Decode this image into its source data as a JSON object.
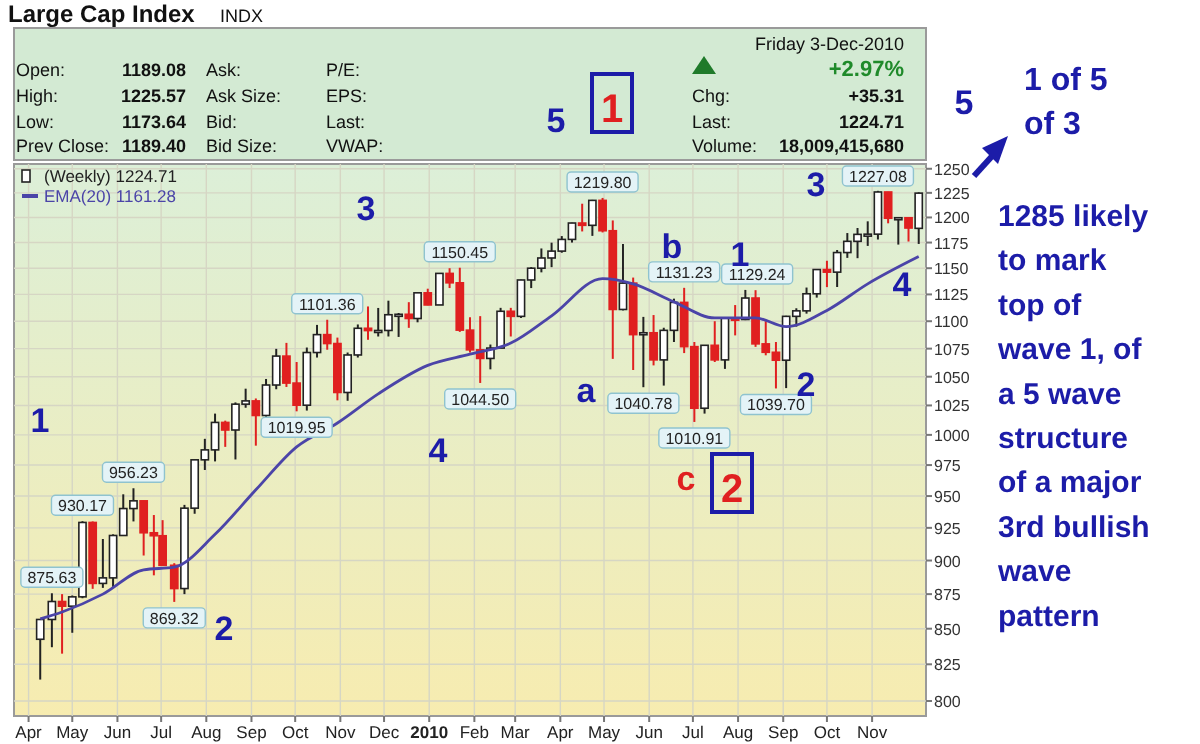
{
  "chart_data": {
    "type": "candlestick",
    "title": "Large Cap Index",
    "subtitle": "INDX",
    "xlim": [
      "2009-03-22",
      "2010-12-08"
    ],
    "xticks": [
      {
        "value": "2009-04-01",
        "label": "Apr"
      },
      {
        "value": "2009-05-01",
        "label": "May"
      },
      {
        "value": "2009-06-01",
        "label": "Jun"
      },
      {
        "value": "2009-07-01",
        "label": "Jul"
      },
      {
        "value": "2009-08-01",
        "label": "Aug"
      },
      {
        "value": "2009-09-01",
        "label": "Sep"
      },
      {
        "value": "2009-10-01",
        "label": "Oct"
      },
      {
        "value": "2009-11-01",
        "label": "Nov"
      },
      {
        "value": "2009-12-01",
        "label": "Dec"
      },
      {
        "value": "2010-01-01",
        "label": "2010"
      },
      {
        "value": "2010-02-01",
        "label": "Feb"
      },
      {
        "value": "2010-03-01",
        "label": "Mar"
      },
      {
        "value": "2010-04-01",
        "label": "Apr"
      },
      {
        "value": "2010-05-01",
        "label": "May"
      },
      {
        "value": "2010-06-01",
        "label": "Jun"
      },
      {
        "value": "2010-07-01",
        "label": "Jul"
      },
      {
        "value": "2010-08-01",
        "label": "Aug"
      },
      {
        "value": "2010-09-01",
        "label": "Sep"
      },
      {
        "value": "2010-10-01",
        "label": "Oct"
      },
      {
        "value": "2010-11-01",
        "label": "Nov"
      }
    ],
    "ylim": [
      790,
      1255
    ],
    "yticks": [
      800,
      825,
      850,
      875,
      900,
      925,
      950,
      975,
      1000,
      1025,
      1050,
      1075,
      1100,
      1125,
      1150,
      1175,
      1200,
      1225,
      1250
    ],
    "log": true,
    "grid": true,
    "legend": "top left",
    "series": [
      {
        "name": "(Weekly) 1224.71",
        "type": "candlestick",
        "x": [
          "2009-04-09",
          "2009-04-17",
          "2009-04-24",
          "2009-05-01",
          "2009-05-08",
          "2009-05-15",
          "2009-05-22",
          "2009-05-29",
          "2009-06-05",
          "2009-06-12",
          "2009-06-19",
          "2009-06-26",
          "2009-07-02",
          "2009-07-10",
          "2009-07-17",
          "2009-07-24",
          "2009-07-31",
          "2009-08-07",
          "2009-08-14",
          "2009-08-21",
          "2009-08-28",
          "2009-09-04",
          "2009-09-11",
          "2009-09-18",
          "2009-09-25",
          "2009-10-02",
          "2009-10-09",
          "2009-10-16",
          "2009-10-23",
          "2009-10-30",
          "2009-11-06",
          "2009-11-13",
          "2009-11-20",
          "2009-11-27",
          "2009-12-04",
          "2009-12-11",
          "2009-12-18",
          "2009-12-24",
          "2009-12-31",
          "2010-01-08",
          "2010-01-15",
          "2010-01-22",
          "2010-01-29",
          "2010-02-05",
          "2010-02-12",
          "2010-02-19",
          "2010-02-26",
          "2010-03-05",
          "2010-03-12",
          "2010-03-19",
          "2010-03-26",
          "2010-04-02",
          "2010-04-09",
          "2010-04-16",
          "2010-04-23",
          "2010-04-30",
          "2010-05-07",
          "2010-05-14",
          "2010-05-21",
          "2010-05-28",
          "2010-06-04",
          "2010-06-11",
          "2010-06-18",
          "2010-06-25",
          "2010-07-02",
          "2010-07-09",
          "2010-07-16",
          "2010-07-23",
          "2010-07-30",
          "2010-08-06",
          "2010-08-13",
          "2010-08-20",
          "2010-08-27",
          "2010-09-03",
          "2010-09-10",
          "2010-09-17",
          "2010-09-24",
          "2010-10-01",
          "2010-10-08",
          "2010-10-15",
          "2010-10-22",
          "2010-10-29",
          "2010-11-05",
          "2010-11-12",
          "2010-11-19",
          "2010-11-26",
          "2010-12-03"
        ],
        "ohlc": [
          [
            842.5,
            856.9,
            814.5,
            856.6
          ],
          [
            856.6,
            875.63,
            836.9,
            869.6
          ],
          [
            869.6,
            875,
            832.4,
            866.2
          ],
          [
            866.2,
            874,
            847.1,
            873
          ],
          [
            873,
            930.17,
            872,
            929.2
          ],
          [
            929.2,
            930,
            878.9,
            882.9
          ],
          [
            882.9,
            916.4,
            879.6,
            887
          ],
          [
            887,
            920,
            880,
            919.1
          ],
          [
            919.1,
            951.4,
            919,
            940.1
          ],
          [
            940.1,
            956.23,
            930,
            946.2
          ],
          [
            946.2,
            946.3,
            903.8,
            921.2
          ],
          [
            921.2,
            935,
            888.9,
            918.9
          ],
          [
            918.9,
            931,
            896,
            896.4
          ],
          [
            896.4,
            898,
            869.32,
            879.1
          ],
          [
            879.1,
            943,
            875,
            940.4
          ],
          [
            940.4,
            979.4,
            936,
            979.3
          ],
          [
            979.3,
            996.7,
            971,
            987.5
          ],
          [
            987.5,
            1018,
            978,
            1010.5
          ],
          [
            1010.5,
            1012,
            990,
            1004.1
          ],
          [
            1004.1,
            1027.6,
            979.6,
            1026.1
          ],
          [
            1026.1,
            1039.5,
            1023,
            1028.9
          ],
          [
            1028.9,
            1031,
            991,
            1016.4
          ],
          [
            1016.4,
            1048,
            1015,
            1042.7
          ],
          [
            1042.7,
            1074.8,
            1039,
            1068.3
          ],
          [
            1068.3,
            1080.2,
            1041,
            1044.4
          ],
          [
            1044.4,
            1063,
            1019.95,
            1025.2
          ],
          [
            1025.2,
            1076,
            1020.6,
            1071.5
          ],
          [
            1071.5,
            1096.6,
            1067,
            1087.7
          ],
          [
            1087.7,
            1101.36,
            1074,
            1079.6
          ],
          [
            1079.6,
            1085,
            1029.4,
            1036.2
          ],
          [
            1036.2,
            1071.5,
            1029,
            1069.3
          ],
          [
            1069.3,
            1097,
            1067,
            1093.5
          ],
          [
            1093.5,
            1113.7,
            1083,
            1091.4
          ],
          [
            1091.4,
            1112.3,
            1086,
            1091.5
          ],
          [
            1091.5,
            1119.1,
            1086,
            1106
          ],
          [
            1106,
            1107.6,
            1085.6,
            1106.4
          ],
          [
            1106.4,
            1117.7,
            1093.9,
            1102.5
          ],
          [
            1102.5,
            1126.5,
            1099,
            1126.5
          ],
          [
            1126.5,
            1130.4,
            1114.8,
            1115.1
          ],
          [
            1115.1,
            1145.4,
            1115.1,
            1145
          ],
          [
            1145,
            1150,
            1131,
            1136
          ],
          [
            1136,
            1150.45,
            1090.2,
            1091.8
          ],
          [
            1091.8,
            1103.7,
            1071.6,
            1073.9
          ],
          [
            1073.9,
            1104.7,
            1044.5,
            1066.2
          ],
          [
            1066.2,
            1078.7,
            1056.5,
            1075.5
          ],
          [
            1075.5,
            1112.4,
            1075.5,
            1109.2
          ],
          [
            1109.2,
            1112.4,
            1086,
            1104.5
          ],
          [
            1104.5,
            1139,
            1103,
            1138.7
          ],
          [
            1138.7,
            1151,
            1131,
            1150
          ],
          [
            1150,
            1169.2,
            1146,
            1159.9
          ],
          [
            1159.9,
            1174.9,
            1151,
            1166.6
          ],
          [
            1166.6,
            1181.4,
            1165,
            1178.1
          ],
          [
            1178.1,
            1194.7,
            1175,
            1194.4
          ],
          [
            1194.4,
            1213.9,
            1186,
            1192.1
          ],
          [
            1192.1,
            1217.8,
            1181.6,
            1217.3
          ],
          [
            1217.3,
            1219.8,
            1185,
            1186.7
          ],
          [
            1186.7,
            1197,
            1065.8,
            1110.9
          ],
          [
            1110.9,
            1173.6,
            1110,
            1135.7
          ],
          [
            1135.7,
            1141,
            1055.9,
            1087.7
          ],
          [
            1087.7,
            1104,
            1040.78,
            1089.4
          ],
          [
            1089.4,
            1105.7,
            1060,
            1064.9
          ],
          [
            1064.9,
            1094,
            1042.2,
            1091.6
          ],
          [
            1091.6,
            1121,
            1081,
            1117.5
          ],
          [
            1117.5,
            1131.23,
            1071,
            1076.8
          ],
          [
            1076.8,
            1081,
            1010.91,
            1022.6
          ],
          [
            1022.6,
            1078,
            1018,
            1078
          ],
          [
            1078,
            1100,
            1063,
            1064.9
          ],
          [
            1064.9,
            1103,
            1056.9,
            1102.7
          ],
          [
            1102.7,
            1115,
            1087,
            1101.6
          ],
          [
            1101.6,
            1129.24,
            1101,
            1121.6
          ],
          [
            1121.6,
            1129,
            1076.6,
            1079.3
          ],
          [
            1079.3,
            1100,
            1069,
            1071.7
          ],
          [
            1071.7,
            1081,
            1039.7,
            1064.6
          ],
          [
            1064.6,
            1105,
            1040,
            1104.5
          ],
          [
            1104.5,
            1112,
            1095,
            1109.6
          ],
          [
            1109.6,
            1131.5,
            1107,
            1125.6
          ],
          [
            1125.6,
            1148.9,
            1122,
            1148.7
          ],
          [
            1148.7,
            1157.2,
            1131.9,
            1146.2
          ],
          [
            1146.2,
            1167.7,
            1132,
            1165.2
          ],
          [
            1165.2,
            1184.4,
            1160,
            1176.2
          ],
          [
            1176.2,
            1189.4,
            1159.7,
            1183.1
          ],
          [
            1183.1,
            1196.1,
            1171.7,
            1183.3
          ],
          [
            1183.3,
            1227.08,
            1178,
            1225.9
          ],
          [
            1225.9,
            1226,
            1194.1,
            1199.2
          ],
          [
            1199.2,
            1200,
            1173,
            1199.7
          ],
          [
            1199.7,
            1200,
            1176,
            1189.4
          ],
          [
            1189.08,
            1225.57,
            1173.64,
            1224.71
          ]
        ]
      },
      {
        "name": "EMA(20) 1161.28",
        "type": "line",
        "color": "#4b44a8",
        "x": [
          "2009-04-09",
          "2009-04-24",
          "2009-05-22",
          "2009-06-19",
          "2009-07-10",
          "2009-08-07",
          "2009-09-04",
          "2009-10-02",
          "2009-10-30",
          "2009-11-27",
          "2009-12-31",
          "2010-01-29",
          "2010-02-26",
          "2010-03-26",
          "2010-04-30",
          "2010-05-21",
          "2010-06-18",
          "2010-07-16",
          "2010-08-13",
          "2010-09-03",
          "2010-10-01",
          "2010-10-29",
          "2010-12-03"
        ],
        "values": [
          857,
          862,
          875,
          893,
          895,
          920,
          955,
          990,
          1010,
          1035,
          1060,
          1070,
          1080,
          1105,
          1140,
          1135,
          1118,
          1103,
          1103,
          1095,
          1110,
          1135,
          1161.28
        ]
      }
    ],
    "annotations": [
      "Open:",
      "1189.08",
      "High:",
      "1225.57",
      "Low:",
      "1173.64",
      "Prev Close:",
      "1189.40",
      "Ask:",
      "Ask Size:",
      "Bid:",
      "Bid Size:",
      "P/E:",
      "EPS:",
      "Last:",
      "VWAP:",
      "Friday  3-Dec-2010",
      "+2.97%",
      "Chg:",
      "+35.31",
      "Last:",
      "1224.71",
      "Volume:",
      "18,009,415,680",
      "5",
      "1",
      "5",
      "1 of 5\nof 3",
      "1285 likely\nto mark\ntop of\nwave 1, of\na 5 wave\nstructure\nof a major\n3rd bullish\nwave\npattern",
      {
        "text": "875.63",
        "x": "2009-04-17",
        "y": 875.63
      },
      {
        "text": "930.17",
        "x": "2009-05-08",
        "y": 930.17
      },
      {
        "text": "956.23",
        "x": "2009-06-12",
        "y": 956.23
      },
      {
        "text": "869.32",
        "x": "2009-07-10",
        "y": 869.32
      },
      {
        "text": "1019.95",
        "x": "2009-10-02",
        "y": 1019.95
      },
      {
        "text": "1101.36",
        "x": "2009-10-23",
        "y": 1101.36
      },
      {
        "text": "1150.45",
        "x": "2010-01-22",
        "y": 1150.45
      },
      {
        "text": "1044.50",
        "x": "2010-02-05",
        "y": 1044.5
      },
      {
        "text": "1219.80",
        "x": "2010-04-30",
        "y": 1219.8
      },
      {
        "text": "1040.78",
        "x": "2010-05-28",
        "y": 1040.78
      },
      {
        "text": "1131.23",
        "x": "2010-06-25",
        "y": 1131.23
      },
      {
        "text": "1010.91",
        "x": "2010-07-02",
        "y": 1010.91
      },
      {
        "text": "1129.24",
        "x": "2010-08-06",
        "y": 1129.24
      },
      {
        "text": "1039.70",
        "x": "2010-08-27",
        "y": 1039.7
      },
      {
        "text": "1227.08",
        "x": "2010-11-05",
        "y": 1227.08
      },
      "1",
      "2",
      "3",
      "4",
      "a",
      "b",
      "c",
      "2",
      "1",
      "2",
      "3",
      "4"
    ]
  }
}
